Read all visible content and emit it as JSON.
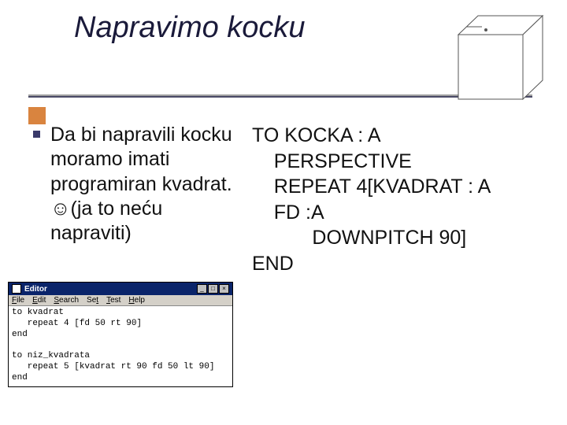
{
  "title": "Napravimo kocku",
  "body": {
    "left": "Da bi napravili kocku moramo imati programiran kvadrat.☺(ja to neću napraviti)",
    "right": "TO KOCKA : A\n    PERSPECTIVE\n    REPEAT 4[KVADRAT : A\n    FD :A\n           DOWNPITCH 90]\nEND"
  },
  "cube": {
    "stroke": "#555555",
    "fill": "#ffffff",
    "size": 120
  },
  "editor": {
    "title": "Editor",
    "menu": [
      "File",
      "Edit",
      "Search",
      "Set",
      "Test",
      "Help"
    ],
    "menu_underline_idx": [
      0,
      0,
      0,
      2,
      0,
      0
    ],
    "code": "to kvadrat\n   repeat 4 [fd 50 rt 90]\nend\n\nto niz_kvadrata\n   repeat 5 [kvadrat rt 90 fd 50 lt 90]\nend"
  },
  "colors": {
    "title": "#1a1a3a",
    "rule_grey": "#a0a0a0",
    "rule_dark": "#4a4a66",
    "accent": "#d9843f",
    "bullet": "#3a3a6a",
    "titlebar": "#0a246a",
    "menu_bg": "#d4d0c8"
  }
}
